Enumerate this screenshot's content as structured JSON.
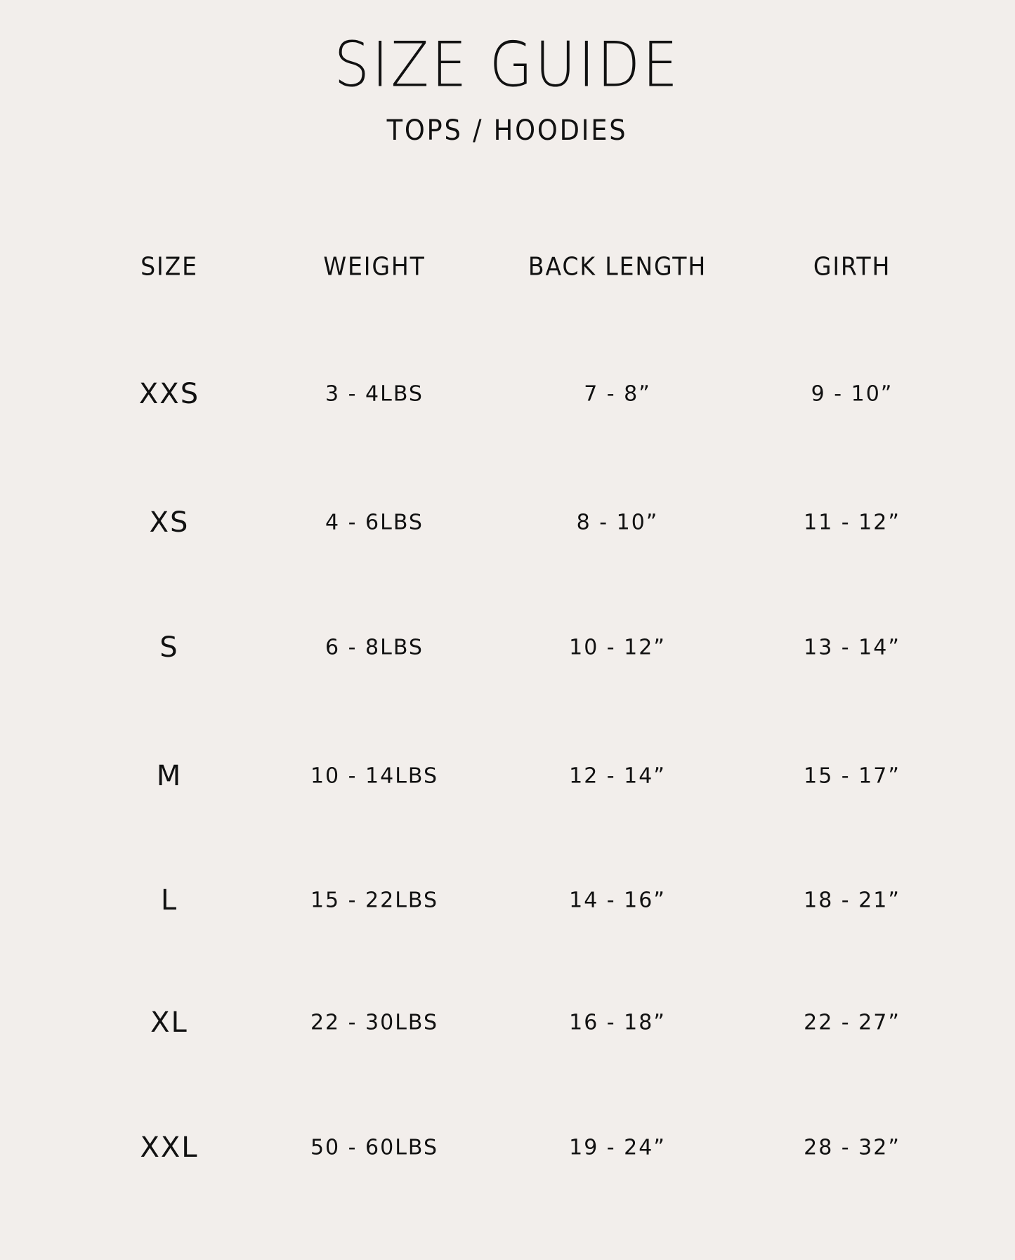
{
  "title": "SIZE GUIDE",
  "subtitle": "TOPS / HOODIES",
  "headers": [
    "SIZE",
    "WEIGHT",
    "BACK LENGTH",
    "GIRTH"
  ],
  "rows": [
    {
      "size": "XXS",
      "weight": "3 - 4LBS",
      "back_length": "7 - 8”",
      "girth": "9 - 10”"
    },
    {
      "size": "XS",
      "weight": "4 - 6LBS",
      "back_length": "8 - 10”",
      "girth": "11 - 12”"
    },
    {
      "size": "S",
      "weight": "6 - 8LBS",
      "back_length": "10 - 12”",
      "girth": "13 - 14”"
    },
    {
      "size": "M",
      "weight": "10 - 14LBS",
      "back_length": "12 - 14”",
      "girth": "15 - 17”"
    },
    {
      "size": "L",
      "weight": "15 - 22LBS",
      "back_length": "14 - 16”",
      "girth": "18 - 21”"
    },
    {
      "size": "XL",
      "weight": "22 - 30LBS",
      "back_length": "16 - 18”",
      "girth": "22 - 27”"
    },
    {
      "size": "XXL",
      "weight": "50 - 60LBS",
      "back_length": "19 - 24”",
      "girth": "28 - 32”"
    }
  ],
  "colors": {
    "background": "#f2eeeb",
    "text": "#111111"
  }
}
